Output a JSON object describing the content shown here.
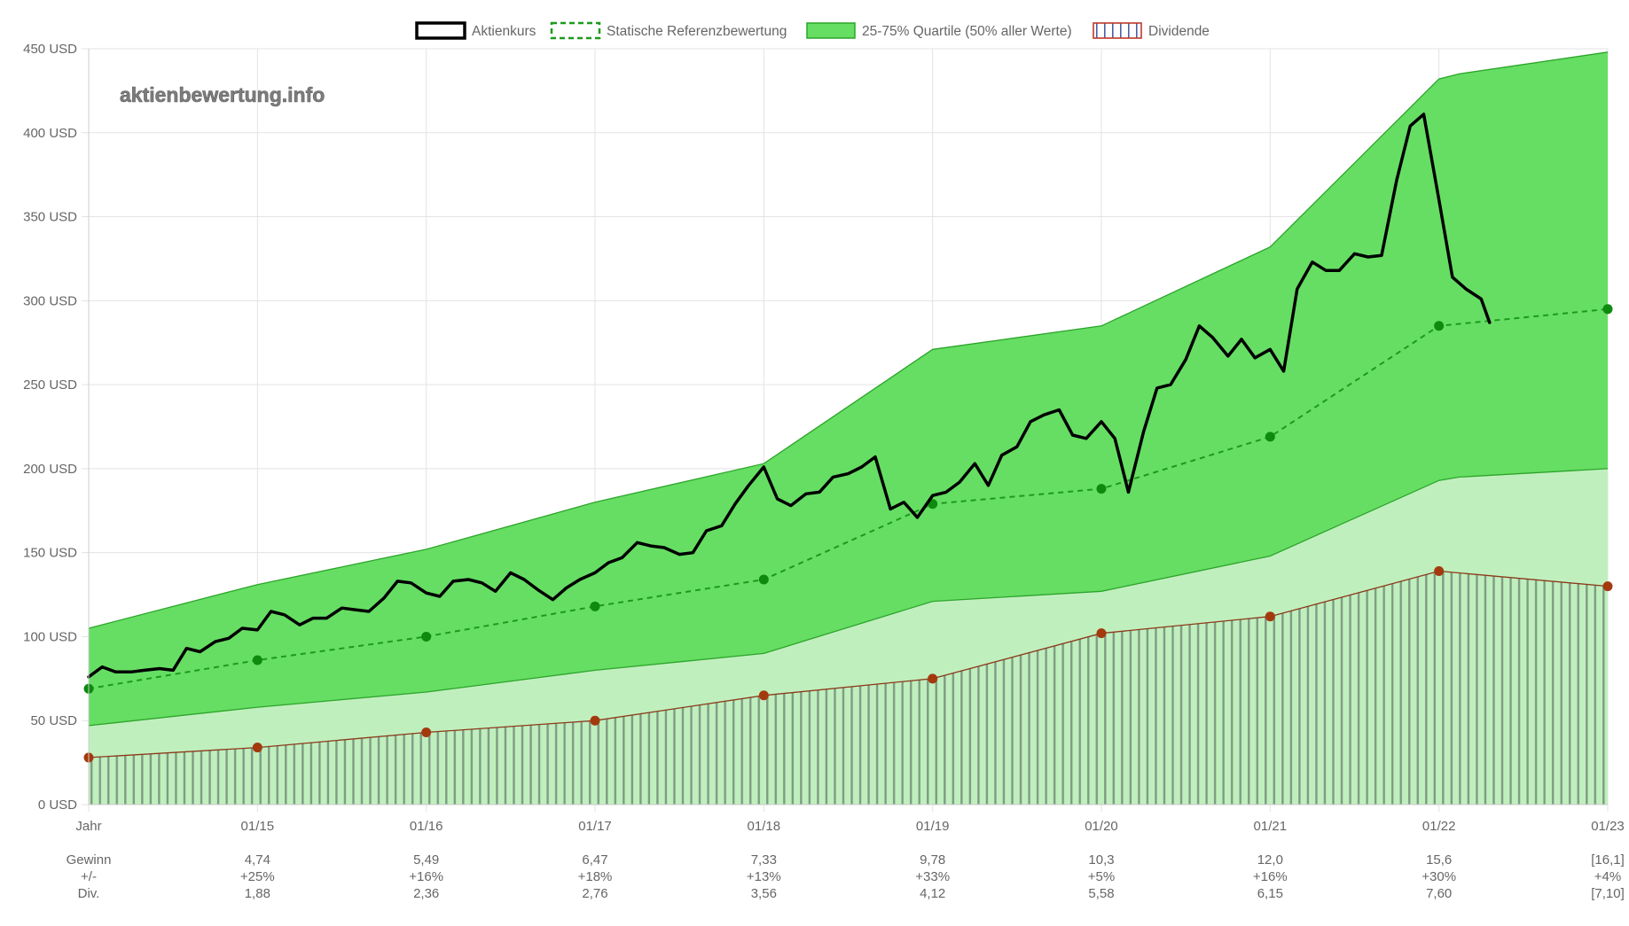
{
  "chart_data": {
    "type": "area",
    "watermark": "aktienbewertung.info",
    "legend": [
      {
        "name": "Aktienkurs",
        "style": "solid-black"
      },
      {
        "name": "Statische Referenzbewertung",
        "style": "dashed-green"
      },
      {
        "name": "25-75% Quartile (50% aller Werte)",
        "style": "green-fill"
      },
      {
        "name": "Dividende",
        "style": "hatched"
      }
    ],
    "y_axis": {
      "min": 0,
      "max": 450,
      "step": 50,
      "unit": " USD",
      "tick_labels": [
        "0 USD",
        "50 USD",
        "100 USD",
        "150 USD",
        "200 USD",
        "250 USD",
        "300 USD",
        "350 USD",
        "400 USD",
        "450 USD"
      ]
    },
    "x_axis": {
      "min": 2014.0,
      "max": 2023.0,
      "tick_labels": [
        "Jahr",
        "01/15",
        "01/16",
        "01/17",
        "01/18",
        "01/19",
        "01/20",
        "01/21",
        "01/22",
        "01/23"
      ]
    },
    "table": {
      "rows": [
        {
          "label": "Gewinn",
          "values": [
            "4,74",
            "5,49",
            "6,47",
            "7,33",
            "9,78",
            "10,3",
            "12,0",
            "15,6",
            "[16,1]"
          ]
        },
        {
          "label": "+/-",
          "values": [
            "+25%",
            "+16%",
            "+18%",
            "+13%",
            "+33%",
            "+5%",
            "+16%",
            "+30%",
            "+4%"
          ]
        },
        {
          "label": "Div.",
          "values": [
            "1,88",
            "2,36",
            "2,76",
            "3,56",
            "4,12",
            "5,58",
            "6,15",
            "7,60",
            "[7,10]"
          ]
        }
      ]
    },
    "q75": [
      [
        2014.0,
        105
      ],
      [
        2015.0,
        131
      ],
      [
        2016.0,
        152
      ],
      [
        2017.0,
        180
      ],
      [
        2018.0,
        203
      ],
      [
        2019.0,
        271
      ],
      [
        2020.0,
        285
      ],
      [
        2021.0,
        332
      ],
      [
        2022.0,
        432
      ],
      [
        2022.12,
        435
      ],
      [
        2023.0,
        448
      ]
    ],
    "q25": [
      [
        2014.0,
        47
      ],
      [
        2015.0,
        58
      ],
      [
        2016.0,
        67
      ],
      [
        2017.0,
        80
      ],
      [
        2018.0,
        90
      ],
      [
        2019.0,
        121
      ],
      [
        2020.0,
        127
      ],
      [
        2021.0,
        148
      ],
      [
        2022.0,
        193
      ],
      [
        2022.12,
        195
      ],
      [
        2023.0,
        200
      ]
    ],
    "reference": [
      [
        2014.0,
        69
      ],
      [
        2015.0,
        86
      ],
      [
        2016.0,
        100
      ],
      [
        2017.0,
        118
      ],
      [
        2018.0,
        134
      ],
      [
        2019.0,
        179
      ],
      [
        2020.0,
        188
      ],
      [
        2021.0,
        219
      ],
      [
        2022.0,
        285
      ],
      [
        2023.0,
        295
      ]
    ],
    "dividend_line": [
      [
        2014.0,
        28
      ],
      [
        2015.0,
        34
      ],
      [
        2016.0,
        43
      ],
      [
        2017.0,
        50
      ],
      [
        2018.0,
        65
      ],
      [
        2019.0,
        75
      ],
      [
        2020.0,
        102
      ],
      [
        2021.0,
        112
      ],
      [
        2022.0,
        139
      ],
      [
        2023.0,
        130
      ]
    ],
    "price": [
      [
        2014.0,
        76
      ],
      [
        2014.08,
        82
      ],
      [
        2014.16,
        79
      ],
      [
        2014.25,
        79
      ],
      [
        2014.33,
        80
      ],
      [
        2014.42,
        81
      ],
      [
        2014.5,
        80
      ],
      [
        2014.58,
        93
      ],
      [
        2014.66,
        91
      ],
      [
        2014.75,
        97
      ],
      [
        2014.83,
        99
      ],
      [
        2014.91,
        105
      ],
      [
        2015.0,
        104
      ],
      [
        2015.08,
        115
      ],
      [
        2015.16,
        113
      ],
      [
        2015.25,
        107
      ],
      [
        2015.33,
        111
      ],
      [
        2015.41,
        111
      ],
      [
        2015.5,
        117
      ],
      [
        2015.58,
        116
      ],
      [
        2015.66,
        115
      ],
      [
        2015.75,
        123
      ],
      [
        2015.83,
        133
      ],
      [
        2015.91,
        132
      ],
      [
        2016.0,
        126
      ],
      [
        2016.08,
        124
      ],
      [
        2016.16,
        133
      ],
      [
        2016.25,
        134
      ],
      [
        2016.33,
        132
      ],
      [
        2016.41,
        127
      ],
      [
        2016.5,
        138
      ],
      [
        2016.58,
        134
      ],
      [
        2016.66,
        128
      ],
      [
        2016.75,
        122
      ],
      [
        2016.83,
        129
      ],
      [
        2016.91,
        134
      ],
      [
        2017.0,
        138
      ],
      [
        2017.08,
        144
      ],
      [
        2017.16,
        147
      ],
      [
        2017.25,
        156
      ],
      [
        2017.33,
        154
      ],
      [
        2017.41,
        153
      ],
      [
        2017.5,
        149
      ],
      [
        2017.58,
        150
      ],
      [
        2017.66,
        163
      ],
      [
        2017.75,
        166
      ],
      [
        2017.83,
        179
      ],
      [
        2017.91,
        190
      ],
      [
        2018.0,
        201
      ],
      [
        2018.08,
        182
      ],
      [
        2018.16,
        178
      ],
      [
        2018.25,
        185
      ],
      [
        2018.33,
        186
      ],
      [
        2018.41,
        195
      ],
      [
        2018.5,
        197
      ],
      [
        2018.58,
        201
      ],
      [
        2018.66,
        207
      ],
      [
        2018.75,
        176
      ],
      [
        2018.83,
        180
      ],
      [
        2018.91,
        171
      ],
      [
        2019.0,
        184
      ],
      [
        2019.08,
        186
      ],
      [
        2019.16,
        192
      ],
      [
        2019.25,
        203
      ],
      [
        2019.33,
        190
      ],
      [
        2019.41,
        208
      ],
      [
        2019.5,
        213
      ],
      [
        2019.58,
        228
      ],
      [
        2019.66,
        232
      ],
      [
        2019.75,
        235
      ],
      [
        2019.83,
        220
      ],
      [
        2019.91,
        218
      ],
      [
        2020.0,
        228
      ],
      [
        2020.08,
        218
      ],
      [
        2020.16,
        186
      ],
      [
        2020.25,
        222
      ],
      [
        2020.33,
        248
      ],
      [
        2020.41,
        250
      ],
      [
        2020.5,
        265
      ],
      [
        2020.58,
        285
      ],
      [
        2020.66,
        278
      ],
      [
        2020.75,
        267
      ],
      [
        2020.83,
        277
      ],
      [
        2020.91,
        266
      ],
      [
        2021.0,
        271
      ],
      [
        2021.08,
        258
      ],
      [
        2021.16,
        307
      ],
      [
        2021.25,
        323
      ],
      [
        2021.33,
        318
      ],
      [
        2021.41,
        318
      ],
      [
        2021.5,
        328
      ],
      [
        2021.58,
        326
      ],
      [
        2021.66,
        327
      ],
      [
        2021.75,
        372
      ],
      [
        2021.83,
        404
      ],
      [
        2021.91,
        411
      ],
      [
        2022.0,
        360
      ],
      [
        2022.08,
        314
      ],
      [
        2022.16,
        307
      ],
      [
        2022.25,
        301
      ],
      [
        2022.3,
        287
      ]
    ]
  }
}
